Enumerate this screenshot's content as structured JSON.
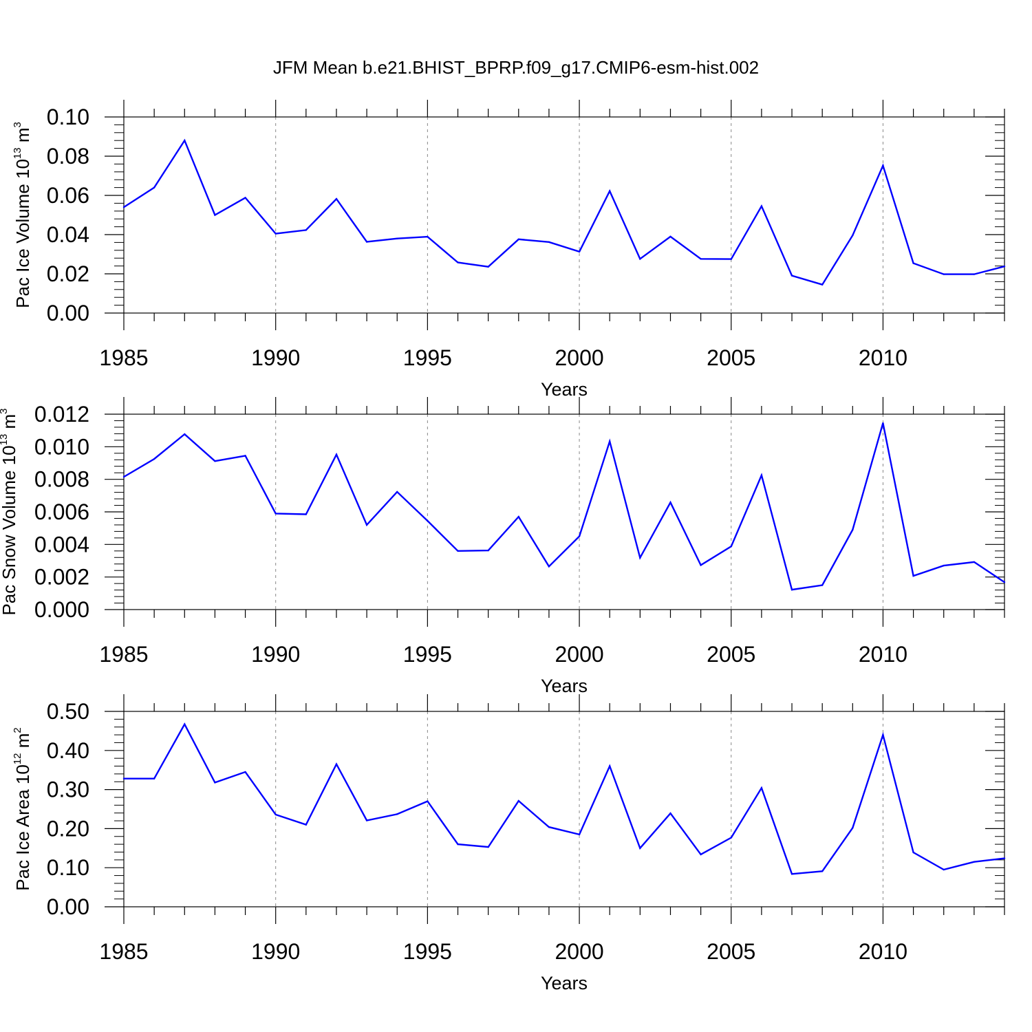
{
  "title": "JFM Mean b.e21.BHIST_BPRP.f09_g17.CMIP6-esm-hist.002",
  "chart_data": [
    {
      "type": "line",
      "ylabel": {
        "text": "Pac Ice Volume 10",
        "sup": "13",
        "unit": " m",
        "unit_sup": "3"
      },
      "xlabel": "Years",
      "xlim": [
        1985,
        2014
      ],
      "ylim": [
        0,
        0.1
      ],
      "xticks": [
        "1985",
        "1990",
        "1995",
        "2000",
        "2005",
        "2010"
      ],
      "yticks": [
        "0.00",
        "0.02",
        "0.04",
        "0.06",
        "0.08",
        "0.10"
      ],
      "line_color": "#0000ff",
      "grid": "vertical dashed at major x ticks",
      "x": [
        1985,
        1986,
        1987,
        1988,
        1989,
        1990,
        1991,
        1992,
        1993,
        1994,
        1995,
        1996,
        1997,
        1998,
        1999,
        2000,
        2001,
        2002,
        2003,
        2004,
        2005,
        2006,
        2007,
        2008,
        2009,
        2010,
        2011,
        2012,
        2013,
        2014
      ],
      "values": [
        0.054,
        0.064,
        0.088,
        0.05,
        0.0588,
        0.0405,
        0.0423,
        0.0582,
        0.0363,
        0.038,
        0.0389,
        0.0258,
        0.0236,
        0.0376,
        0.0362,
        0.0313,
        0.0622,
        0.0276,
        0.039,
        0.0276,
        0.0275,
        0.0545,
        0.0191,
        0.0145,
        0.0396,
        0.0752,
        0.0254,
        0.0198,
        0.0198,
        0.0238
      ]
    },
    {
      "type": "line",
      "ylabel": {
        "text": "Pac Snow Volume 10",
        "sup": "13",
        "unit": " m",
        "unit_sup": "3"
      },
      "xlabel": "Years",
      "xlim": [
        1985,
        2014
      ],
      "ylim": [
        0,
        0.012
      ],
      "xticks": [
        "1985",
        "1990",
        "1995",
        "2000",
        "2005",
        "2010"
      ],
      "yticks": [
        "0.000",
        "0.002",
        "0.004",
        "0.006",
        "0.008",
        "0.010",
        "0.012"
      ],
      "line_color": "#0000ff",
      "grid": "vertical dashed at major x ticks",
      "x": [
        1985,
        1986,
        1987,
        1988,
        1989,
        1990,
        1991,
        1992,
        1993,
        1994,
        1995,
        1996,
        1997,
        1998,
        1999,
        2000,
        2001,
        2002,
        2003,
        2004,
        2005,
        2006,
        2007,
        2008,
        2009,
        2010,
        2011,
        2012,
        2013,
        2014
      ],
      "values": [
        0.00815,
        0.00925,
        0.01077,
        0.00912,
        0.00945,
        0.0059,
        0.00585,
        0.00952,
        0.0052,
        0.00723,
        0.00545,
        0.0036,
        0.00363,
        0.0057,
        0.00265,
        0.0045,
        0.01033,
        0.00318,
        0.00658,
        0.00273,
        0.00388,
        0.00825,
        0.00122,
        0.0015,
        0.0049,
        0.01145,
        0.00207,
        0.0027,
        0.00292,
        0.00168
      ]
    },
    {
      "type": "line",
      "ylabel": {
        "text": "Pac Ice Area 10",
        "sup": "12",
        "unit": " m",
        "unit_sup": "2"
      },
      "xlabel": "Years",
      "xlim": [
        1985,
        2014
      ],
      "ylim": [
        0,
        0.5
      ],
      "xticks": [
        "1985",
        "1990",
        "1995",
        "2000",
        "2005",
        "2010"
      ],
      "yticks": [
        "0.00",
        "0.10",
        "0.20",
        "0.30",
        "0.40",
        "0.50"
      ],
      "line_color": "#0000ff",
      "grid": "vertical dashed at major x ticks",
      "x": [
        1985,
        1986,
        1987,
        1988,
        1989,
        1990,
        1991,
        1992,
        1993,
        1994,
        1995,
        1996,
        1997,
        1998,
        1999,
        2000,
        2001,
        2002,
        2003,
        2004,
        2005,
        2006,
        2007,
        2008,
        2009,
        2010,
        2011,
        2012,
        2013,
        2014
      ],
      "values": [
        0.328,
        0.328,
        0.467,
        0.318,
        0.345,
        0.236,
        0.21,
        0.365,
        0.221,
        0.237,
        0.27,
        0.16,
        0.153,
        0.271,
        0.204,
        0.185,
        0.36,
        0.15,
        0.239,
        0.134,
        0.177,
        0.304,
        0.084,
        0.091,
        0.202,
        0.44,
        0.139,
        0.095,
        0.115,
        0.124
      ]
    }
  ]
}
